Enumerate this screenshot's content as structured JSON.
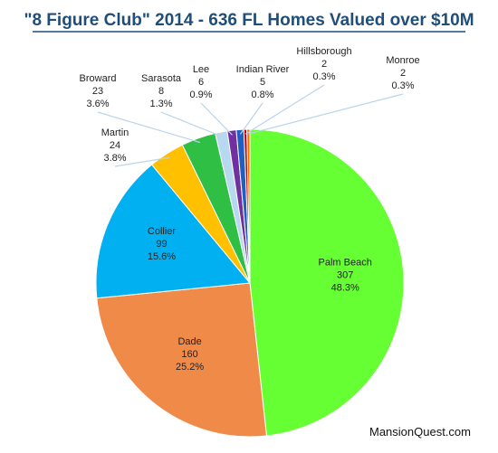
{
  "chart_data": {
    "type": "pie",
    "title": "\"8 Figure Club\" 2014 - 636 FL Homes Valued over $10M",
    "categories": [
      "Palm Beach",
      "Dade",
      "Collier",
      "Martin",
      "Broward",
      "Sarasota",
      "Lee",
      "Indian River",
      "Hillsborough",
      "Monroe"
    ],
    "values": [
      307,
      160,
      99,
      24,
      23,
      8,
      6,
      5,
      2,
      2
    ],
    "percent_labels": [
      "48.3%",
      "25.2%",
      "15.6%",
      "3.8%",
      "3.6%",
      "1.3%",
      "0.9%",
      "0.8%",
      "0.3%",
      "0.3%"
    ],
    "value_labels": [
      "307",
      "160",
      "99",
      "24",
      "23",
      "8",
      "6",
      "5",
      "2",
      "2"
    ],
    "colors": [
      "#66ff33",
      "#f08a48",
      "#00b0f0",
      "#ffc000",
      "#2fbf45",
      "#b8d8ef",
      "#7030a0",
      "#1f5fbf",
      "#c00000",
      "#ff6600"
    ],
    "legend": "none",
    "source_text": "MansionQuest.com"
  }
}
